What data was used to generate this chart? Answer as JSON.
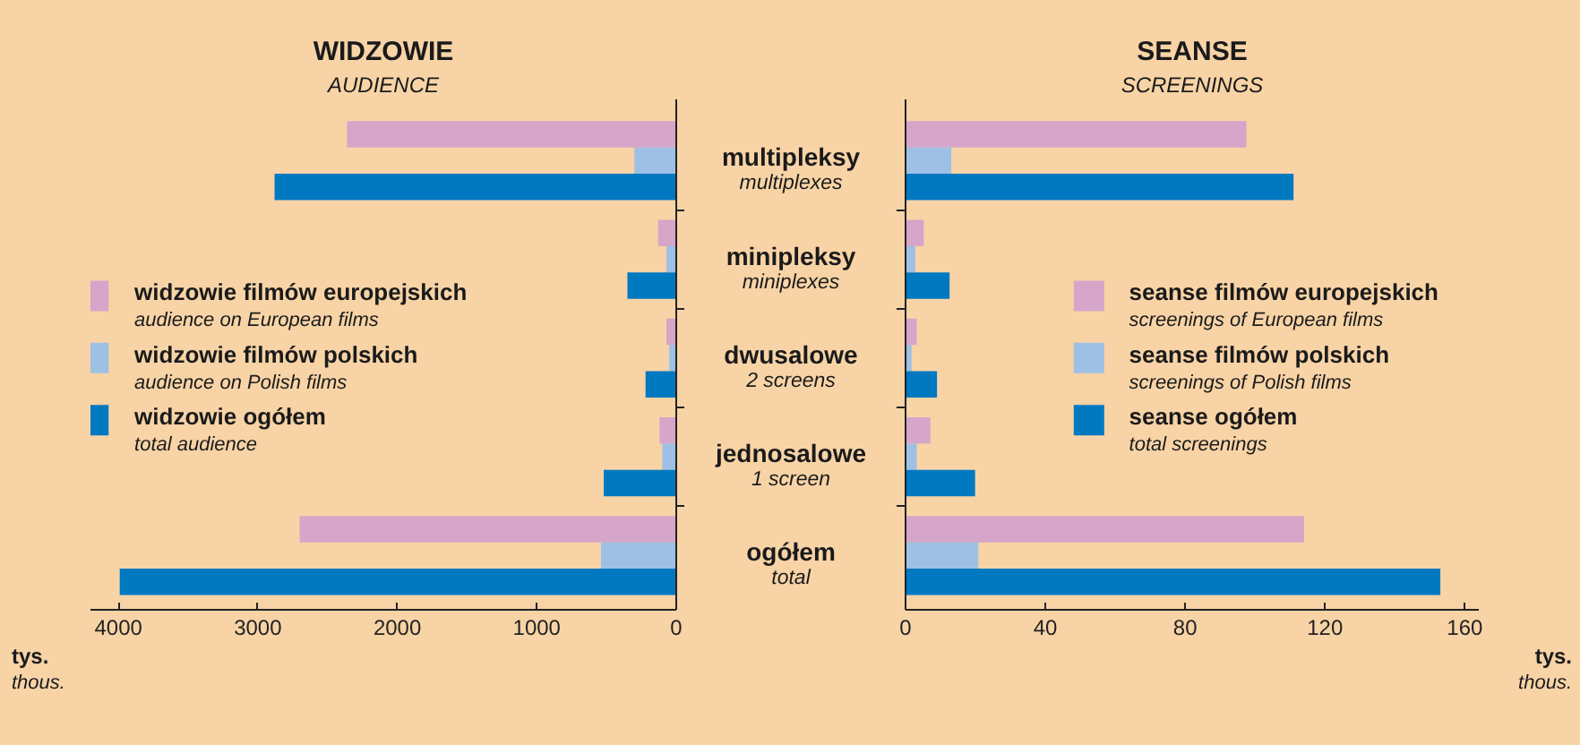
{
  "chart_data": [
    {
      "type": "bar",
      "orientation": "horizontal",
      "title": "WIDZOWIE",
      "subtitle": "AUDIENCE",
      "xlabel": "tys.\nthous.",
      "categories": [
        "multipleksy\nmultiplexes",
        "minipleksy\nminiplexes",
        "dwusalowe\n2 screens",
        "jednosalowe\n1 screen",
        "ogółem\ntotal"
      ],
      "series": [
        {
          "name": "widzowie filmów europejskich\naudience on European films",
          "color": "#d5a6c9",
          "values": [
            2360,
            130,
            70,
            120,
            2700
          ]
        },
        {
          "name": "widzowie filmów polskich\naudience on Polish films",
          "color": "#9dc0e4",
          "values": [
            300,
            70,
            50,
            100,
            540
          ]
        },
        {
          "name": "widzowie ogółem\ntotal audience",
          "color": "#0079c1",
          "values": [
            2880,
            350,
            220,
            520,
            3990
          ]
        }
      ],
      "xlim": [
        4200,
        0
      ],
      "xticks": [
        4000,
        3000,
        2000,
        1000,
        0
      ],
      "grid": false,
      "legend": "left"
    },
    {
      "type": "bar",
      "orientation": "horizontal",
      "title": "SEANSE",
      "subtitle": "SCREENINGS",
      "xlabel": "tys.\nthous.",
      "categories": [
        "multipleksy\nmultiplexes",
        "minipleksy\nminiplexes",
        "dwusalowe\n2 screens",
        "jednosalowe\n1 screen",
        "ogółem\ntotal"
      ],
      "series": [
        {
          "name": "seanse filmów europejskich\nscreenings of European films",
          "color": "#d5a6c9",
          "values": [
            97.5,
            5.2,
            3.2,
            7.1,
            114
          ]
        },
        {
          "name": "seanse filmów polskich\nscreenings of Polish films",
          "color": "#9dc0e4",
          "values": [
            13.1,
            2.8,
            1.7,
            3.2,
            20.8
          ]
        },
        {
          "name": "seanse ogółem\ntotal screenings",
          "color": "#0079c1",
          "values": [
            111,
            12.6,
            9.0,
            19.9,
            153
          ]
        }
      ],
      "xlim": [
        0,
        164
      ],
      "xticks": [
        0,
        40,
        80,
        120,
        160
      ],
      "grid": false,
      "legend": "right",
      "tick_labels": "x"
    }
  ]
}
